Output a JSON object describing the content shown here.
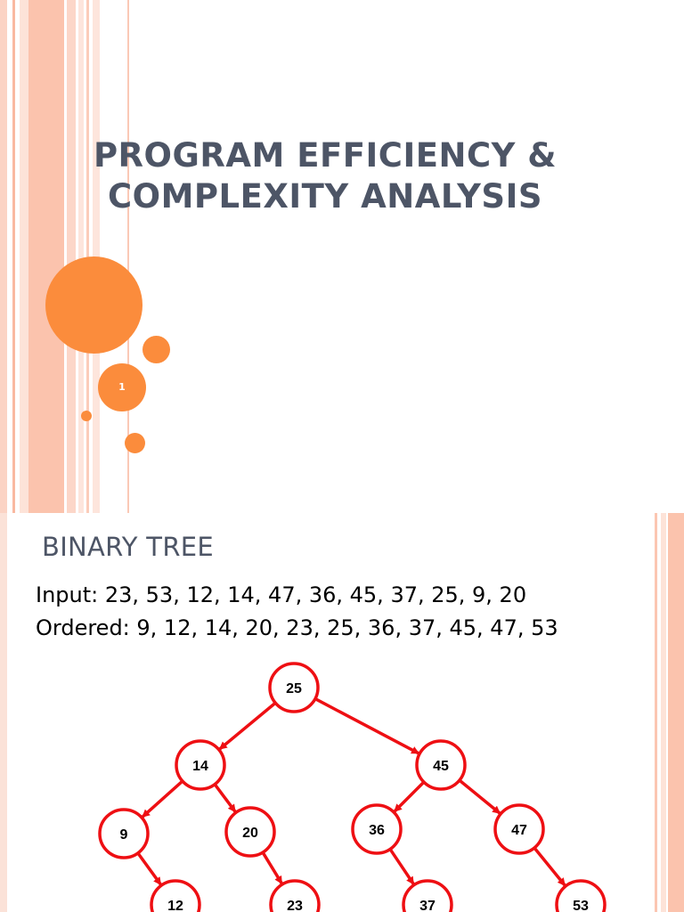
{
  "slide1": {
    "title_line1": "PROGRAM EFFICIENCY &",
    "title_line2": "COMPLEXITY ANALYSIS",
    "slide_number": "1",
    "accent_color": "#fb8c3c",
    "title_color": "#4d5566"
  },
  "slide2": {
    "title": "BINARY TREE",
    "input_line": "Input: 23, 53, 12, 14, 47, 36, 45, 37, 25, 9, 20",
    "ordered_line": "Ordered: 9, 12, 14, 20, 23, 25, 36, 37, 45, 47, 53",
    "tree_color": "#ee0f13",
    "tree": {
      "nodes": [
        {
          "id": "n25",
          "label": "25"
        },
        {
          "id": "n14",
          "label": "14"
        },
        {
          "id": "n45",
          "label": "45"
        },
        {
          "id": "n9",
          "label": "9"
        },
        {
          "id": "n20",
          "label": "20"
        },
        {
          "id": "n36",
          "label": "36"
        },
        {
          "id": "n47",
          "label": "47"
        },
        {
          "id": "n12",
          "label": "12"
        },
        {
          "id": "n23",
          "label": "23"
        },
        {
          "id": "n37",
          "label": "37"
        },
        {
          "id": "n53",
          "label": "53"
        }
      ],
      "edges": [
        [
          "n25",
          "n14"
        ],
        [
          "n25",
          "n45"
        ],
        [
          "n14",
          "n9"
        ],
        [
          "n14",
          "n20"
        ],
        [
          "n45",
          "n36"
        ],
        [
          "n45",
          "n47"
        ],
        [
          "n9",
          "n12"
        ],
        [
          "n20",
          "n23"
        ],
        [
          "n36",
          "n37"
        ],
        [
          "n47",
          "n53"
        ]
      ]
    }
  }
}
